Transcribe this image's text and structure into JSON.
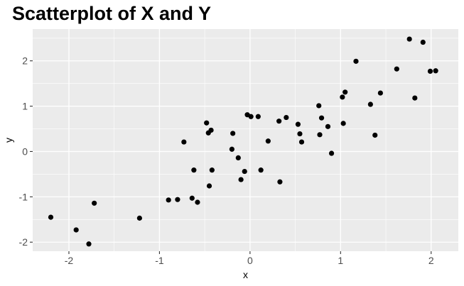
{
  "chart_data": {
    "type": "scatter",
    "title": "Scatterplot of X and Y",
    "xlabel": "x",
    "ylabel": "y",
    "xlim": [
      -2.4,
      2.3
    ],
    "ylim": [
      -2.2,
      2.7
    ],
    "x_ticks": [
      -2,
      -1,
      0,
      1,
      2
    ],
    "y_ticks": [
      -2,
      -1,
      0,
      1,
      2
    ],
    "x_tick_labels": [
      "-2",
      "-1",
      "0",
      "1",
      "2"
    ],
    "y_tick_labels": [
      "-2",
      "-1",
      "0",
      "1",
      "2"
    ],
    "grid": true,
    "legend": "none",
    "colors": {
      "panel_background": "#ebebeb",
      "grid_major": "#ffffff",
      "point": "#000000"
    },
    "points": [
      {
        "x": -2.2,
        "y": -1.45
      },
      {
        "x": -1.92,
        "y": -1.73
      },
      {
        "x": -1.78,
        "y": -2.04
      },
      {
        "x": -1.72,
        "y": -1.14
      },
      {
        "x": -1.22,
        "y": -1.47
      },
      {
        "x": -0.9,
        "y": -1.07
      },
      {
        "x": -0.8,
        "y": -1.06
      },
      {
        "x": -0.73,
        "y": 0.21
      },
      {
        "x": -0.64,
        "y": -1.03
      },
      {
        "x": -0.62,
        "y": -0.41
      },
      {
        "x": -0.58,
        "y": -1.12
      },
      {
        "x": -0.48,
        "y": 0.63
      },
      {
        "x": -0.46,
        "y": 0.41
      },
      {
        "x": -0.45,
        "y": -0.76
      },
      {
        "x": -0.43,
        "y": 0.47
      },
      {
        "x": -0.42,
        "y": -0.41
      },
      {
        "x": -0.2,
        "y": 0.05
      },
      {
        "x": -0.19,
        "y": 0.4
      },
      {
        "x": -0.13,
        "y": -0.14
      },
      {
        "x": -0.1,
        "y": -0.62
      },
      {
        "x": -0.06,
        "y": -0.44
      },
      {
        "x": -0.03,
        "y": 0.81
      },
      {
        "x": 0.01,
        "y": 0.77
      },
      {
        "x": 0.09,
        "y": 0.77
      },
      {
        "x": 0.12,
        "y": -0.41
      },
      {
        "x": 0.2,
        "y": 0.23
      },
      {
        "x": 0.32,
        "y": 0.67
      },
      {
        "x": 0.33,
        "y": -0.67
      },
      {
        "x": 0.4,
        "y": 0.75
      },
      {
        "x": 0.53,
        "y": 0.6
      },
      {
        "x": 0.55,
        "y": 0.39
      },
      {
        "x": 0.57,
        "y": 0.21
      },
      {
        "x": 0.76,
        "y": 1.01
      },
      {
        "x": 0.77,
        "y": 0.37
      },
      {
        "x": 0.79,
        "y": 0.74
      },
      {
        "x": 0.86,
        "y": 0.55
      },
      {
        "x": 0.9,
        "y": -0.04
      },
      {
        "x": 1.02,
        "y": 1.2
      },
      {
        "x": 1.03,
        "y": 0.62
      },
      {
        "x": 1.05,
        "y": 1.31
      },
      {
        "x": 1.17,
        "y": 1.99
      },
      {
        "x": 1.33,
        "y": 1.04
      },
      {
        "x": 1.38,
        "y": 0.36
      },
      {
        "x": 1.44,
        "y": 1.29
      },
      {
        "x": 1.62,
        "y": 1.82
      },
      {
        "x": 1.76,
        "y": 2.48
      },
      {
        "x": 1.82,
        "y": 1.18
      },
      {
        "x": 1.91,
        "y": 2.41
      },
      {
        "x": 1.99,
        "y": 1.77
      },
      {
        "x": 2.05,
        "y": 1.78
      }
    ]
  }
}
